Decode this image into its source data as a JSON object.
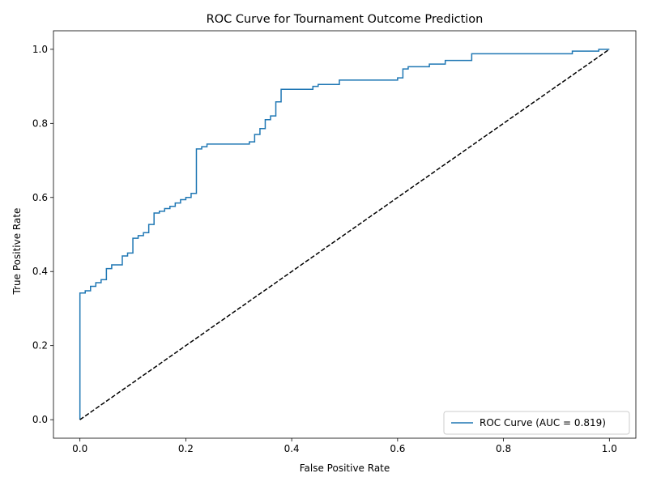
{
  "chart_data": {
    "type": "line",
    "title": "ROC Curve for Tournament Outcome Prediction",
    "xlabel": "False Positive Rate",
    "ylabel": "True Positive Rate",
    "xlim": [
      -0.05,
      1.05
    ],
    "ylim": [
      -0.05,
      1.05
    ],
    "xticks": [
      0.0,
      0.2,
      0.4,
      0.6,
      0.8,
      1.0
    ],
    "yticks": [
      0.0,
      0.2,
      0.4,
      0.6,
      0.8,
      1.0
    ],
    "xtick_labels": [
      "0.0",
      "0.2",
      "0.4",
      "0.6",
      "0.8",
      "1.0"
    ],
    "ytick_labels": [
      "0.0",
      "0.2",
      "0.4",
      "0.6",
      "0.8",
      "1.0"
    ],
    "grid": false,
    "legend_position": "lower-right",
    "series": [
      {
        "name": "ROC Curve (AUC = 0.819)",
        "color": "#1f77b4",
        "style": "solid",
        "x": [
          0.0,
          0.0,
          0.01,
          0.01,
          0.02,
          0.02,
          0.03,
          0.03,
          0.04,
          0.04,
          0.05,
          0.05,
          0.06,
          0.06,
          0.08,
          0.08,
          0.09,
          0.09,
          0.1,
          0.1,
          0.11,
          0.11,
          0.12,
          0.12,
          0.13,
          0.13,
          0.14,
          0.14,
          0.15,
          0.15,
          0.16,
          0.16,
          0.17,
          0.17,
          0.18,
          0.18,
          0.19,
          0.19,
          0.2,
          0.2,
          0.21,
          0.21,
          0.22,
          0.22,
          0.23,
          0.23,
          0.24,
          0.24,
          0.32,
          0.32,
          0.33,
          0.33,
          0.34,
          0.34,
          0.35,
          0.35,
          0.36,
          0.36,
          0.37,
          0.37,
          0.38,
          0.38,
          0.44,
          0.44,
          0.45,
          0.45,
          0.49,
          0.49,
          0.6,
          0.6,
          0.61,
          0.61,
          0.62,
          0.62,
          0.66,
          0.66,
          0.69,
          0.69,
          0.74,
          0.74,
          0.93,
          0.93,
          0.98,
          0.98,
          1.0
        ],
        "y": [
          0.0,
          0.342,
          0.342,
          0.348,
          0.348,
          0.36,
          0.36,
          0.37,
          0.37,
          0.378,
          0.378,
          0.408,
          0.408,
          0.418,
          0.418,
          0.442,
          0.442,
          0.45,
          0.45,
          0.49,
          0.49,
          0.497,
          0.497,
          0.505,
          0.505,
          0.527,
          0.527,
          0.558,
          0.558,
          0.563,
          0.563,
          0.57,
          0.57,
          0.576,
          0.576,
          0.585,
          0.585,
          0.594,
          0.594,
          0.6,
          0.6,
          0.611,
          0.611,
          0.731,
          0.731,
          0.737,
          0.737,
          0.744,
          0.744,
          0.75,
          0.75,
          0.77,
          0.77,
          0.786,
          0.786,
          0.81,
          0.81,
          0.82,
          0.82,
          0.858,
          0.858,
          0.892,
          0.892,
          0.9,
          0.9,
          0.905,
          0.905,
          0.917,
          0.917,
          0.923,
          0.923,
          0.947,
          0.947,
          0.953,
          0.953,
          0.96,
          0.96,
          0.97,
          0.97,
          0.988,
          0.988,
          0.995,
          0.995,
          1.0,
          1.0
        ]
      },
      {
        "name": "",
        "color": "#000000",
        "style": "dashed",
        "x": [
          0.0,
          1.0
        ],
        "y": [
          0.0,
          1.0
        ]
      }
    ]
  }
}
